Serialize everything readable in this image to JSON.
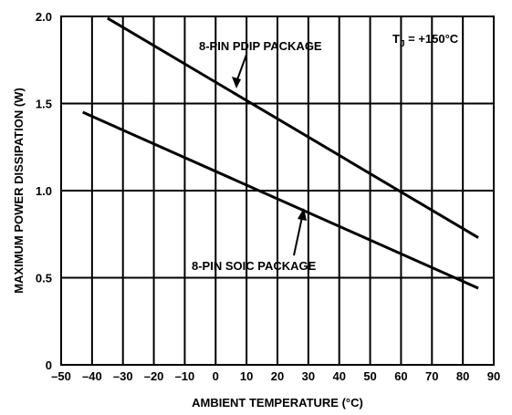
{
  "chart_data": {
    "type": "line",
    "title": "",
    "xlabel": "AMBIENT TEMPERATURE (°C)",
    "ylabel": "MAXIMUM POWER DISSIPATION (W)",
    "xlim": [
      -50,
      90
    ],
    "ylim": [
      0,
      2.0
    ],
    "x_ticks": [
      "–50",
      "–40",
      "–30",
      "–20",
      "–10",
      "0",
      "10",
      "20",
      "30",
      "40",
      "50",
      "60",
      "70",
      "80",
      "90"
    ],
    "y_ticks": [
      "0",
      "0.5",
      "1.0",
      "1.5",
      "2.0"
    ],
    "grid": true,
    "series": [
      {
        "name": "8-PIN PDIP PACKAGE",
        "x": [
          -35,
          85
        ],
        "y": [
          1.99,
          0.73
        ]
      },
      {
        "name": "8-PIN SOIC PACKAGE",
        "x": [
          -43,
          85
        ],
        "y": [
          1.45,
          0.44
        ]
      }
    ],
    "annotations": {
      "tj_label": "T",
      "tj_sub": "J",
      "tj_value": " = +150°C"
    }
  }
}
